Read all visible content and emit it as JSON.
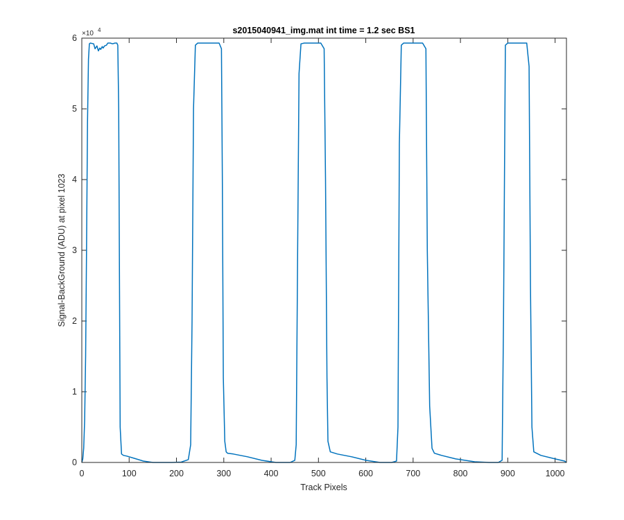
{
  "chart_data": {
    "type": "line",
    "title": "s2015040941_img.mat int time = 1.2 sec   BS1",
    "xlabel": "Track Pixels",
    "ylabel": "Signal-BackGround (ADU) at pixel 1023",
    "y_multiplier_label": "×10",
    "y_multiplier_exponent": "4",
    "xlim": [
      0,
      1024
    ],
    "ylim": [
      0,
      60000
    ],
    "x_ticks": [
      0,
      100,
      200,
      300,
      400,
      500,
      600,
      700,
      800,
      900,
      1000
    ],
    "y_ticks": [
      0,
      10000,
      20000,
      30000,
      40000,
      50000,
      60000
    ],
    "y_tick_labels": [
      "0",
      "1",
      "2",
      "3",
      "4",
      "5",
      "6"
    ],
    "grid": false,
    "series": [
      {
        "color": "#0072BD",
        "x": [
          0,
          2,
          4,
          6,
          8,
          10,
          12,
          14,
          16,
          18,
          25,
          28,
          32,
          35,
          38,
          40,
          43,
          45,
          48,
          52,
          55,
          60,
          65,
          70,
          74,
          76,
          78,
          80,
          81,
          84,
          88,
          95,
          110,
          130,
          150,
          170,
          190,
          210,
          225,
          230,
          233,
          236,
          240,
          245,
          250,
          260,
          275,
          290,
          295,
          297,
          299,
          302,
          305,
          308,
          320,
          350,
          380,
          410,
          440,
          450,
          453,
          456,
          459,
          463,
          470,
          490,
          505,
          512,
          515,
          518,
          520,
          525,
          540,
          570,
          600,
          630,
          655,
          665,
          668,
          671,
          675,
          680,
          700,
          720,
          727,
          730,
          735,
          740,
          745,
          760,
          790,
          830,
          860,
          880,
          888,
          891,
          895,
          900,
          920,
          940,
          945,
          948,
          951,
          955,
          970,
          1000,
          1020,
          1024
        ],
        "y": [
          0,
          500,
          2000,
          6000,
          15000,
          30000,
          48000,
          57000,
          59200,
          59300,
          59200,
          58500,
          58900,
          58200,
          58600,
          58400,
          58800,
          58600,
          58900,
          59000,
          59300,
          59300,
          59200,
          59300,
          59300,
          59000,
          50000,
          20000,
          5000,
          1200,
          1000,
          900,
          600,
          200,
          0,
          0,
          0,
          50,
          400,
          2500,
          20000,
          50000,
          59000,
          59300,
          59300,
          59300,
          59300,
          59300,
          58500,
          40000,
          12000,
          3000,
          1500,
          1300,
          1200,
          800,
          300,
          0,
          0,
          300,
          2500,
          30000,
          55000,
          59200,
          59300,
          59300,
          59300,
          58500,
          40000,
          12000,
          3000,
          1500,
          1200,
          800,
          300,
          0,
          0,
          200,
          5000,
          45000,
          59000,
          59300,
          59300,
          59300,
          58500,
          30000,
          8000,
          2000,
          1300,
          1000,
          500,
          100,
          0,
          0,
          300,
          20000,
          59000,
          59300,
          59300,
          59300,
          56000,
          25000,
          5000,
          1500,
          1000,
          500,
          200,
          0
        ]
      }
    ]
  }
}
